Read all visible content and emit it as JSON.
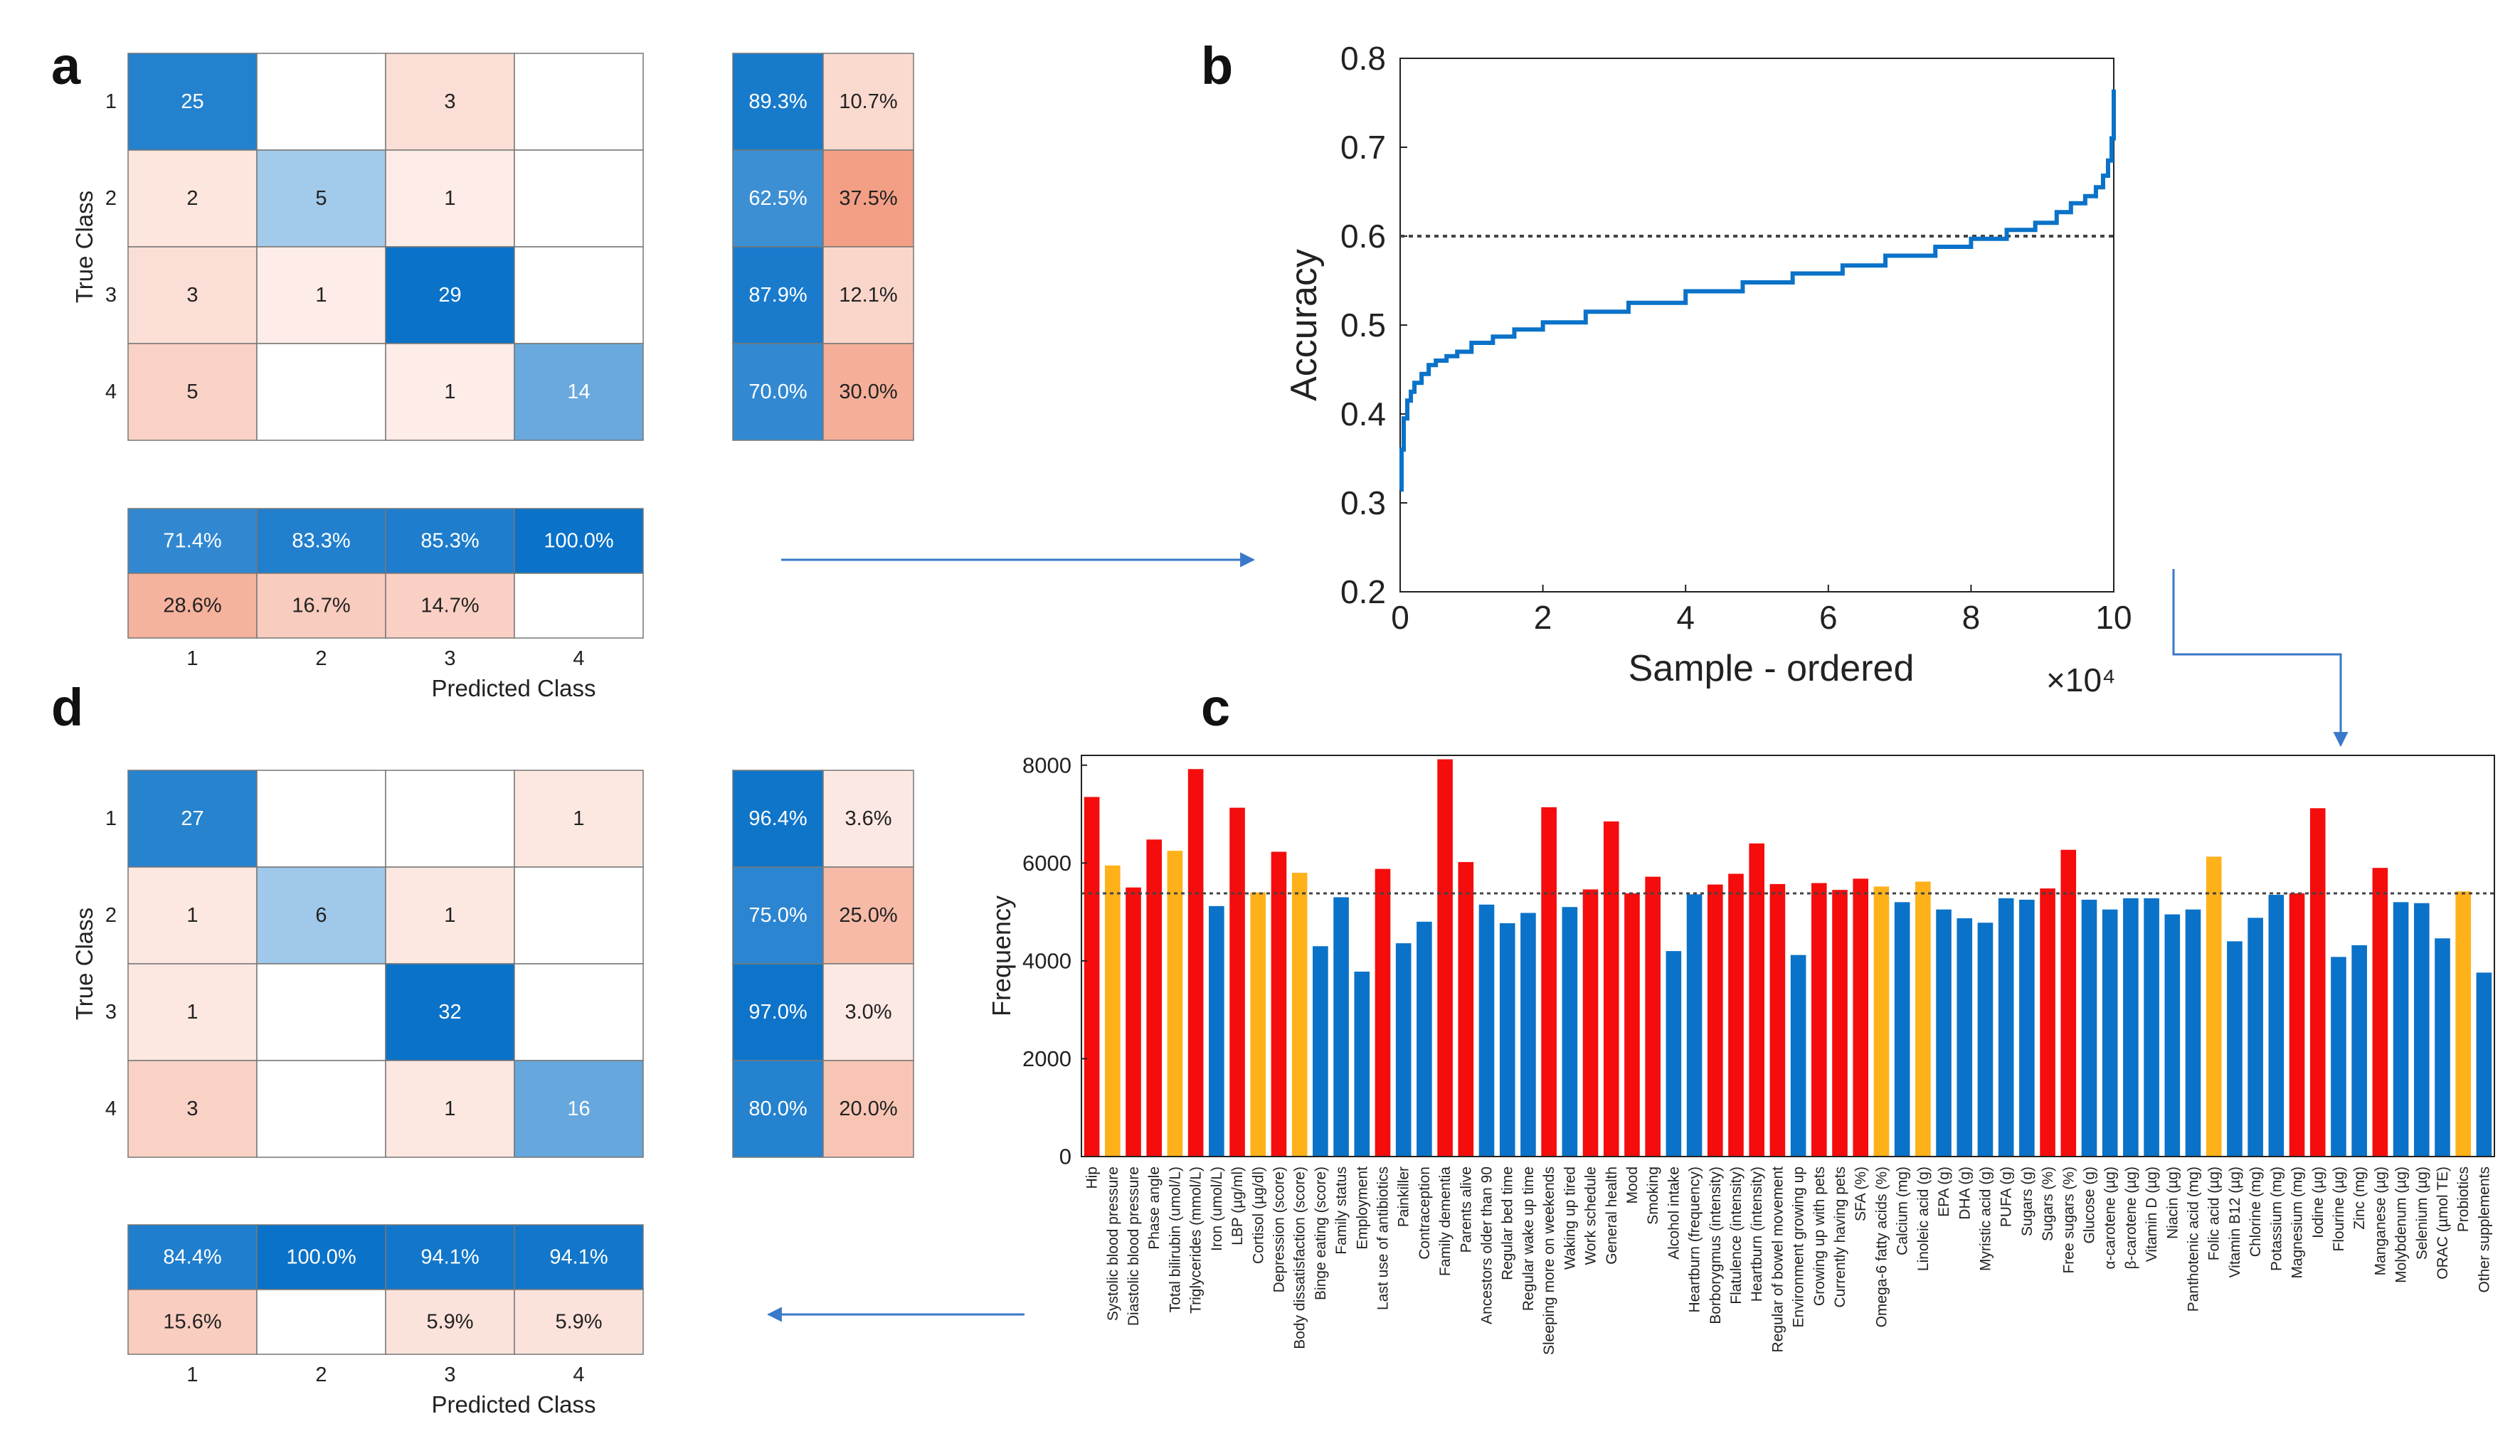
{
  "panels": {
    "a": "a",
    "b": "b",
    "c": "c",
    "d": "d"
  },
  "chart_data": [
    {
      "id": "a",
      "type": "heatmap",
      "title": "",
      "xlabel": "Predicted Class",
      "ylabel": "True Class",
      "classes": [
        "1",
        "2",
        "3",
        "4"
      ],
      "matrix": [
        [
          25,
          null,
          3,
          null
        ],
        [
          2,
          5,
          1,
          null
        ],
        [
          3,
          1,
          29,
          null
        ],
        [
          5,
          null,
          1,
          14
        ]
      ],
      "row_summary": [
        [
          "89.3%",
          "10.7%"
        ],
        [
          "62.5%",
          "37.5%"
        ],
        [
          "87.9%",
          "12.1%"
        ],
        [
          "70.0%",
          "30.0%"
        ]
      ],
      "column_summary": [
        [
          "71.4%",
          "83.3%",
          "85.3%",
          "100.0%"
        ],
        [
          "28.6%",
          "16.7%",
          "14.7%",
          ""
        ]
      ]
    },
    {
      "id": "b",
      "type": "line",
      "title": "",
      "xlabel": "Sample - ordered",
      "ylabel": "Accuracy",
      "x_exponent": "×10⁴",
      "xlim": [
        0,
        10
      ],
      "ylim": [
        0.2,
        0.8
      ],
      "xticks": [
        "0",
        "2",
        "4",
        "6",
        "8",
        "10"
      ],
      "yticks": [
        "0.2",
        "0.3",
        "0.4",
        "0.5",
        "0.6",
        "0.7",
        "0.8"
      ],
      "reference_line": 0.6,
      "x": [
        0,
        0.02,
        0.05,
        0.1,
        0.15,
        0.2,
        0.3,
        0.4,
        0.5,
        0.65,
        0.8,
        1.0,
        1.3,
        1.6,
        2.0,
        2.6,
        3.2,
        4.0,
        4.8,
        5.5,
        6.2,
        6.8,
        7.5,
        8.0,
        8.5,
        8.9,
        9.2,
        9.4,
        9.6,
        9.75,
        9.85,
        9.92,
        9.97,
        10.0
      ],
      "y": [
        0.315,
        0.36,
        0.395,
        0.415,
        0.425,
        0.435,
        0.445,
        0.455,
        0.46,
        0.465,
        0.47,
        0.48,
        0.487,
        0.495,
        0.503,
        0.515,
        0.525,
        0.538,
        0.548,
        0.558,
        0.567,
        0.578,
        0.588,
        0.597,
        0.607,
        0.615,
        0.627,
        0.637,
        0.645,
        0.655,
        0.668,
        0.685,
        0.71,
        0.765
      ]
    },
    {
      "id": "c",
      "type": "bar",
      "title": "",
      "xlabel": "",
      "ylabel": "Frequency",
      "ylim": [
        0,
        8200
      ],
      "yticks": [
        "0",
        "2000",
        "4000",
        "6000",
        "8000"
      ],
      "reference_line": 5380,
      "colors": {
        "red": "#f50c0c",
        "orange": "#ffb11a",
        "blue": "#0a72c8"
      },
      "categories": [
        "Hip",
        "Systolic blood pressure",
        "Diastolic blood pressure",
        "Phase angle",
        "Total bilirubin (umol/L)",
        "Triglycerides (mmol/L)",
        "Iron (umol/L)",
        "LBP (µg/ml)",
        "Cortisol (µg/dl)",
        "Depression (score)",
        "Body dissatisfaction (score)",
        "Binge eating (score)",
        "Family status",
        "Employment",
        "Last use of antibiotics",
        "Painkiller",
        "Contraception",
        "Family dementia",
        "Parents alive",
        "Ancestors older than 90",
        "Regular bed time",
        "Regular wake up time",
        "Sleeping more on weekends",
        "Waking up tired",
        "Work schedule",
        "General health",
        "Mood",
        "Smoking",
        "Alcohol intake",
        "Heartburn (frequency)",
        "Borborygmus (intensity)",
        "Flatulence (intensity)",
        "Heartburn (intensity)",
        "Regular of bowel movement",
        "Environment growing up",
        "Growing up with pets",
        "Currently having pets",
        "SFA (%)",
        "Omega-6 fatty acids (%)",
        "Calcium (mg)",
        "Linoleic acid (g)",
        "EPA (g)",
        "DHA (g)",
        "Myristic acid (g)",
        "PUFA (g)",
        "Sugars (g)",
        "Sugars (%)",
        "Free sugars (%)",
        "Glucose (g)",
        "α-carotene (µg)",
        "β-carotene (µg)",
        "Vitamin D (µg)",
        "Niacin (µg)",
        "Panthotenic acid (mg)",
        "Folic acid (µg)",
        "Vitamin B12 (µg)",
        "Chlorine (mg)",
        "Potassium (mg)",
        "Magnesium (mg)",
        "Iodine (µg)",
        "Flourine (µg)",
        "Zinc (mg)",
        "Manganese (µg)",
        "Molybdenum (µg)",
        "Selenium (µg)",
        "ORAC (µmol TE)",
        "Probiotics",
        "Other supplements"
      ],
      "values": [
        7350,
        5950,
        5500,
        6480,
        6250,
        7920,
        5120,
        7130,
        5400,
        6230,
        5800,
        4300,
        5300,
        3780,
        5880,
        4360,
        4800,
        8120,
        6020,
        5150,
        4770,
        4980,
        7140,
        5100,
        5460,
        6850,
        5380,
        5720,
        4200,
        5360,
        5560,
        5780,
        6400,
        5570,
        4120,
        5590,
        5450,
        5680,
        5520,
        5200,
        5620,
        5050,
        4870,
        4780,
        5280,
        5250,
        5480,
        6270,
        5250,
        5050,
        5280,
        5280,
        4950,
        5050,
        6130,
        4400,
        4880,
        5350,
        5380,
        7120,
        4080,
        4320,
        5900,
        5200,
        5180,
        4460,
        5420,
        3760
      ],
      "bar_colors": [
        "red",
        "orange",
        "red",
        "red",
        "orange",
        "red",
        "blue",
        "red",
        "orange",
        "red",
        "orange",
        "blue",
        "blue",
        "blue",
        "red",
        "blue",
        "blue",
        "red",
        "red",
        "blue",
        "blue",
        "blue",
        "red",
        "blue",
        "red",
        "red",
        "red",
        "red",
        "blue",
        "blue",
        "red",
        "red",
        "red",
        "red",
        "blue",
        "red",
        "red",
        "red",
        "orange",
        "blue",
        "orange",
        "blue",
        "blue",
        "blue",
        "blue",
        "blue",
        "red",
        "red",
        "blue",
        "blue",
        "blue",
        "blue",
        "blue",
        "blue",
        "orange",
        "blue",
        "blue",
        "blue",
        "red",
        "red",
        "blue",
        "blue",
        "red",
        "blue",
        "blue",
        "blue",
        "orange",
        "blue"
      ]
    },
    {
      "id": "d",
      "type": "heatmap",
      "title": "",
      "xlabel": "Predicted Class",
      "ylabel": "True Class",
      "classes": [
        "1",
        "2",
        "3",
        "4"
      ],
      "matrix": [
        [
          27,
          null,
          null,
          1
        ],
        [
          1,
          6,
          1,
          null
        ],
        [
          1,
          null,
          32,
          null
        ],
        [
          3,
          null,
          1,
          16
        ]
      ],
      "row_summary": [
        [
          "96.4%",
          "3.6%"
        ],
        [
          "75.0%",
          "25.0%"
        ],
        [
          "97.0%",
          "3.0%"
        ],
        [
          "80.0%",
          "20.0%"
        ]
      ],
      "column_summary": [
        [
          "84.4%",
          "100.0%",
          "94.1%",
          "94.1%"
        ],
        [
          "15.6%",
          "",
          "5.9%",
          "5.9%"
        ]
      ]
    }
  ]
}
